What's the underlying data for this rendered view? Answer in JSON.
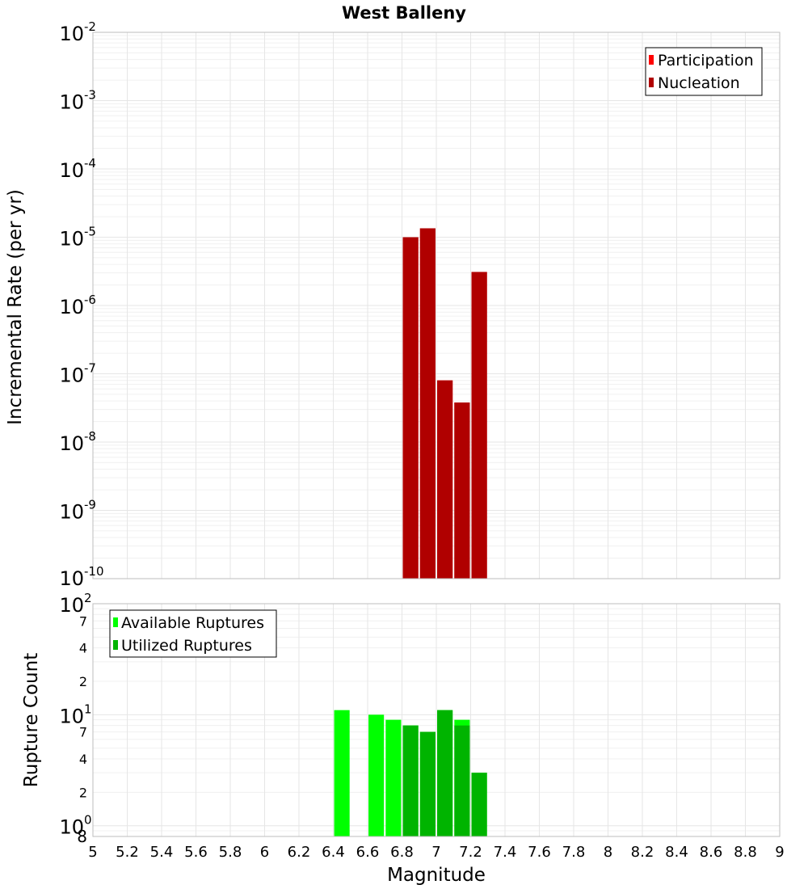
{
  "chart_data": [
    {
      "type": "bar",
      "title": "West Balleny",
      "ylabel": "Incremental Rate (per yr)",
      "xlabel": "",
      "xlim": [
        5,
        9
      ],
      "ylim": [
        1e-10,
        0.01
      ],
      "yscale": "log",
      "grid": true,
      "legend_placement": "top-right",
      "y_tick_exponents": [
        "-10",
        "-9",
        "-8",
        "-7",
        "-6",
        "-5",
        "-4",
        "-3",
        "-2"
      ],
      "y_tick_base": "10",
      "series": [
        {
          "name": "Participation",
          "color": "#ff0000",
          "x": [
            6.85,
            6.95,
            7.05,
            7.15,
            7.25
          ],
          "values": [
            1e-05,
            1.35e-05,
            8e-08,
            3.8e-08,
            3.1e-06
          ]
        },
        {
          "name": "Nucleation",
          "color": "#b00000",
          "x": [
            6.85,
            6.95,
            7.05,
            7.15,
            7.25
          ],
          "values": [
            1e-05,
            1.35e-05,
            8e-08,
            3.8e-08,
            3.1e-06
          ]
        }
      ]
    },
    {
      "type": "bar",
      "title": "",
      "ylabel": "Rupture Count",
      "xlabel": "Magnitude",
      "xlim": [
        5,
        9
      ],
      "ylim": [
        0.8,
        100
      ],
      "yscale": "log",
      "grid": true,
      "legend_placement": "top-left",
      "x_tick_labels": [
        "5",
        "5.2",
        "5.4",
        "5.6",
        "5.8",
        "6",
        "6.2",
        "6.4",
        "6.6",
        "6.8",
        "7",
        "7.2",
        "7.4",
        "7.6",
        "7.8",
        "8",
        "8.2",
        "8.4",
        "8.6",
        "8.8",
        "9"
      ],
      "y_major_ticks": [
        {
          "value": 1,
          "base": "10",
          "exp": "0"
        },
        {
          "value": 10,
          "base": "10",
          "exp": "1"
        },
        {
          "value": 100,
          "base": "10",
          "exp": "2"
        }
      ],
      "y_minor_ticks": [
        {
          "value": 0.8,
          "label": "8"
        },
        {
          "value": 2,
          "label": "2"
        },
        {
          "value": 4,
          "label": "4"
        },
        {
          "value": 7,
          "label": "7"
        },
        {
          "value": 20,
          "label": "2"
        },
        {
          "value": 40,
          "label": "4"
        },
        {
          "value": 70,
          "label": "7"
        }
      ],
      "series": [
        {
          "name": "Available Ruptures",
          "color": "#00ff00",
          "x": [
            6.45,
            6.65,
            6.75,
            6.85,
            6.95,
            7.05,
            7.15,
            7.25
          ],
          "values": [
            11,
            10,
            9,
            8,
            7,
            11,
            9,
            3
          ]
        },
        {
          "name": "Utilized Ruptures",
          "color": "#00b400",
          "x": [
            6.85,
            6.95,
            7.05,
            7.15,
            7.25
          ],
          "values": [
            8,
            7,
            11,
            8,
            3
          ]
        }
      ]
    }
  ]
}
